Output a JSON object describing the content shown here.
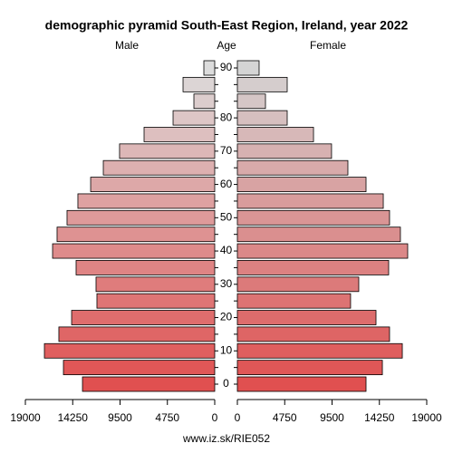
{
  "chart_data": {
    "type": "pyramid",
    "title": "demographic pyramid South-East Region, Ireland, year 2022",
    "y_label": "Age",
    "categories": [
      "0",
      null,
      "10",
      null,
      "20",
      null,
      "30",
      null,
      "40",
      null,
      "50",
      null,
      "60",
      null,
      "70",
      null,
      "80",
      null,
      null,
      "90"
    ],
    "series": [
      {
        "name": "Male",
        "color_gradient": [
          "#e05050",
          "#dcdcdc"
        ],
        "values": [
          13270,
          15180,
          17090,
          15640,
          14360,
          11820,
          11910,
          13910,
          16270,
          15820,
          14820,
          13730,
          12450,
          11180,
          9550,
          7090,
          4180,
          2090,
          3180,
          1090
        ]
      },
      {
        "name": "Female",
        "color_gradient": [
          "#e05050",
          "#d4d4d4"
        ],
        "values": [
          12910,
          14550,
          16550,
          15270,
          13910,
          11360,
          12180,
          15180,
          17090,
          16360,
          15270,
          14640,
          12910,
          11090,
          9450,
          7640,
          5000,
          2820,
          5000,
          2180
        ]
      }
    ],
    "xlim": [
      0,
      19000
    ],
    "xticks": [
      0,
      4750,
      9500,
      14250,
      19000
    ],
    "source": "www.iz.sk/RIE052"
  }
}
